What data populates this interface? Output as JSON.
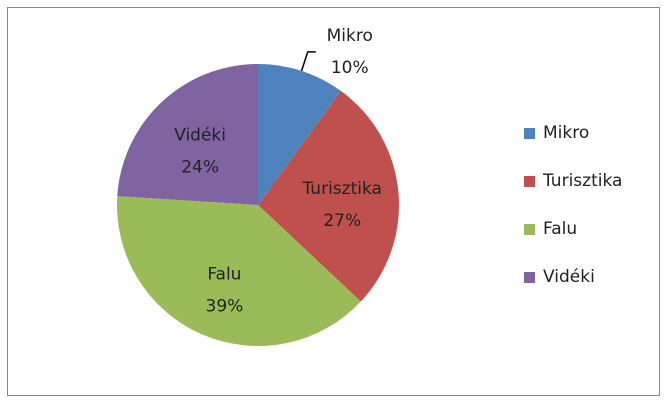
{
  "chart_data": {
    "type": "pie",
    "categories": [
      "Mikro",
      "Turisztika",
      "Falu",
      "Vidéki"
    ],
    "values": [
      10,
      27,
      39,
      24
    ],
    "value_labels": [
      "10%",
      "27%",
      "39%",
      "24%"
    ],
    "colors": [
      "#4f81bd",
      "#c0504d",
      "#9bbb59",
      "#8064a2"
    ],
    "legend": "right"
  }
}
